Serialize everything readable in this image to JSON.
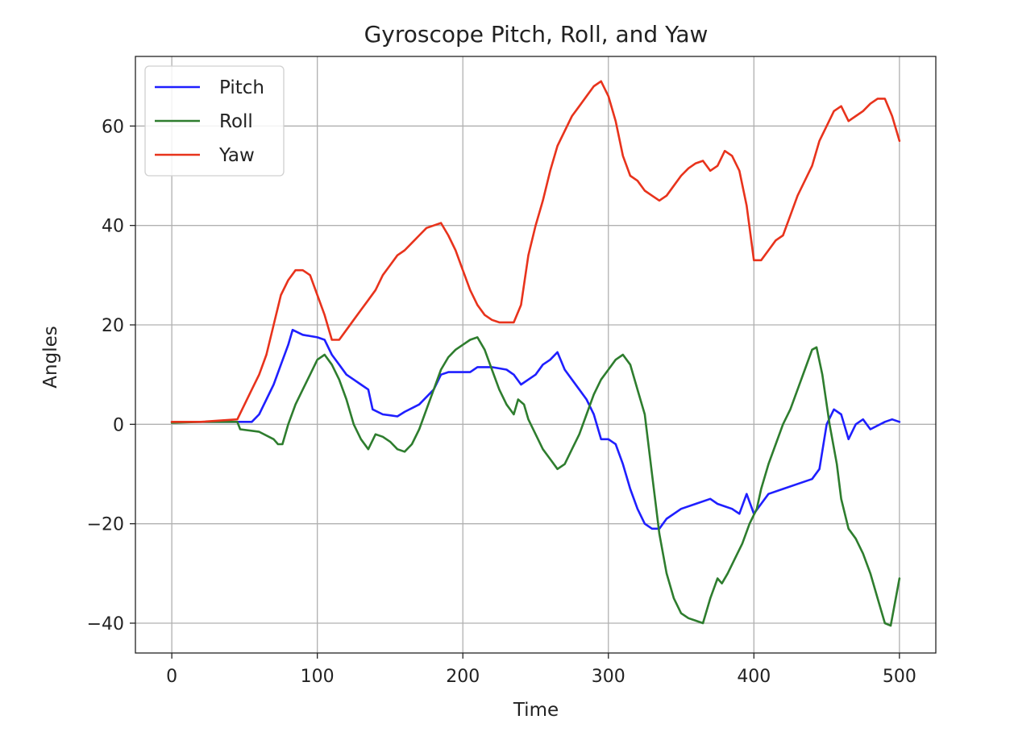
{
  "chart_data": {
    "type": "line",
    "title": "Gyroscope Pitch, Roll, and Yaw",
    "xlabel": "Time",
    "ylabel": "Angles",
    "xlim": [
      -25,
      525
    ],
    "ylim": [
      -46,
      74
    ],
    "xticks": [
      0,
      100,
      200,
      300,
      400,
      500
    ],
    "yticks": [
      -40,
      -20,
      0,
      20,
      40,
      60
    ],
    "xtick_labels": [
      "0",
      "100",
      "200",
      "300",
      "400",
      "500"
    ],
    "ytick_labels": [
      "−40",
      "−20",
      "0",
      "20",
      "40",
      "60"
    ],
    "grid": true,
    "legend_position": "upper-left",
    "series": [
      {
        "name": "Pitch",
        "color": "#1f1fff",
        "points": [
          [
            0,
            0.5
          ],
          [
            20,
            0.5
          ],
          [
            45,
            0.5
          ],
          [
            55,
            0.5
          ],
          [
            60,
            2
          ],
          [
            65,
            5
          ],
          [
            70,
            8
          ],
          [
            75,
            12
          ],
          [
            80,
            16
          ],
          [
            83,
            19
          ],
          [
            90,
            18
          ],
          [
            100,
            17.5
          ],
          [
            105,
            17
          ],
          [
            110,
            14
          ],
          [
            115,
            12
          ],
          [
            120,
            10
          ],
          [
            125,
            9
          ],
          [
            130,
            8
          ],
          [
            135,
            7
          ],
          [
            138,
            3
          ],
          [
            145,
            2
          ],
          [
            150,
            1.8
          ],
          [
            155,
            1.6
          ],
          [
            160,
            2.5
          ],
          [
            170,
            4
          ],
          [
            180,
            7
          ],
          [
            185,
            10
          ],
          [
            190,
            10.5
          ],
          [
            200,
            10.5
          ],
          [
            205,
            10.5
          ],
          [
            210,
            11.5
          ],
          [
            220,
            11.5
          ],
          [
            230,
            11
          ],
          [
            235,
            10
          ],
          [
            240,
            8
          ],
          [
            245,
            9
          ],
          [
            250,
            10
          ],
          [
            255,
            12
          ],
          [
            260,
            13
          ],
          [
            265,
            14.5
          ],
          [
            270,
            11
          ],
          [
            275,
            9
          ],
          [
            280,
            7
          ],
          [
            285,
            5
          ],
          [
            290,
            2
          ],
          [
            295,
            -3
          ],
          [
            300,
            -3
          ],
          [
            305,
            -4
          ],
          [
            310,
            -8
          ],
          [
            315,
            -13
          ],
          [
            320,
            -17
          ],
          [
            325,
            -20
          ],
          [
            330,
            -21
          ],
          [
            335,
            -21
          ],
          [
            340,
            -19
          ],
          [
            350,
            -17
          ],
          [
            360,
            -16
          ],
          [
            370,
            -15
          ],
          [
            375,
            -16
          ],
          [
            380,
            -16.5
          ],
          [
            385,
            -17
          ],
          [
            390,
            -18
          ],
          [
            395,
            -14
          ],
          [
            400,
            -18
          ],
          [
            405,
            -16
          ],
          [
            410,
            -14
          ],
          [
            420,
            -13
          ],
          [
            430,
            -12
          ],
          [
            440,
            -11
          ],
          [
            445,
            -9
          ],
          [
            450,
            0
          ],
          [
            455,
            3
          ],
          [
            460,
            2
          ],
          [
            465,
            -3
          ],
          [
            470,
            0
          ],
          [
            475,
            1
          ],
          [
            480,
            -1
          ],
          [
            490,
            0.5
          ],
          [
            495,
            1
          ],
          [
            500,
            0.5
          ]
        ]
      },
      {
        "name": "Roll",
        "color": "#2e7d2e",
        "points": [
          [
            0,
            0.3
          ],
          [
            20,
            0.5
          ],
          [
            45,
            0.5
          ],
          [
            47,
            -1
          ],
          [
            60,
            -1.5
          ],
          [
            70,
            -3
          ],
          [
            73,
            -4
          ],
          [
            76,
            -4
          ],
          [
            80,
            0
          ],
          [
            85,
            4
          ],
          [
            90,
            7
          ],
          [
            95,
            10
          ],
          [
            100,
            13
          ],
          [
            105,
            14
          ],
          [
            110,
            12
          ],
          [
            115,
            9
          ],
          [
            120,
            5
          ],
          [
            125,
            0
          ],
          [
            130,
            -3
          ],
          [
            135,
            -5
          ],
          [
            140,
            -2
          ],
          [
            145,
            -2.5
          ],
          [
            150,
            -3.5
          ],
          [
            155,
            -5
          ],
          [
            160,
            -5.5
          ],
          [
            165,
            -4
          ],
          [
            170,
            -1
          ],
          [
            175,
            3
          ],
          [
            180,
            7
          ],
          [
            185,
            11
          ],
          [
            190,
            13.5
          ],
          [
            195,
            15
          ],
          [
            200,
            16
          ],
          [
            205,
            17
          ],
          [
            210,
            17.5
          ],
          [
            215,
            15
          ],
          [
            220,
            11
          ],
          [
            225,
            7
          ],
          [
            230,
            4
          ],
          [
            235,
            2
          ],
          [
            238,
            5
          ],
          [
            242,
            4
          ],
          [
            245,
            1
          ],
          [
            250,
            -2
          ],
          [
            255,
            -5
          ],
          [
            260,
            -7
          ],
          [
            265,
            -9
          ],
          [
            270,
            -8
          ],
          [
            275,
            -5
          ],
          [
            280,
            -2
          ],
          [
            285,
            2
          ],
          [
            290,
            6
          ],
          [
            295,
            9
          ],
          [
            300,
            11
          ],
          [
            305,
            13
          ],
          [
            310,
            14
          ],
          [
            315,
            12
          ],
          [
            320,
            7
          ],
          [
            325,
            2
          ],
          [
            330,
            -10
          ],
          [
            335,
            -22
          ],
          [
            340,
            -30
          ],
          [
            345,
            -35
          ],
          [
            350,
            -38
          ],
          [
            355,
            -39
          ],
          [
            360,
            -39.5
          ],
          [
            365,
            -40
          ],
          [
            370,
            -35
          ],
          [
            375,
            -31
          ],
          [
            378,
            -32
          ],
          [
            382,
            -30
          ],
          [
            387,
            -27
          ],
          [
            392,
            -24
          ],
          [
            397,
            -20
          ],
          [
            402,
            -17
          ],
          [
            405,
            -13
          ],
          [
            410,
            -8
          ],
          [
            415,
            -4
          ],
          [
            420,
            0
          ],
          [
            425,
            3
          ],
          [
            430,
            7
          ],
          [
            435,
            11
          ],
          [
            440,
            15
          ],
          [
            443,
            15.5
          ],
          [
            447,
            10
          ],
          [
            452,
            0
          ],
          [
            457,
            -8
          ],
          [
            460,
            -15
          ],
          [
            465,
            -21
          ],
          [
            470,
            -23
          ],
          [
            475,
            -26
          ],
          [
            480,
            -30
          ],
          [
            485,
            -35
          ],
          [
            490,
            -40
          ],
          [
            494,
            -40.5
          ],
          [
            500,
            -31
          ]
        ]
      },
      {
        "name": "Yaw",
        "color": "#e8331c",
        "points": [
          [
            0,
            0.5
          ],
          [
            20,
            0.5
          ],
          [
            45,
            1
          ],
          [
            50,
            4
          ],
          [
            55,
            7
          ],
          [
            60,
            10
          ],
          [
            65,
            14
          ],
          [
            70,
            20
          ],
          [
            75,
            26
          ],
          [
            80,
            29
          ],
          [
            85,
            31
          ],
          [
            90,
            31
          ],
          [
            95,
            30
          ],
          [
            100,
            26
          ],
          [
            105,
            22
          ],
          [
            110,
            17
          ],
          [
            115,
            17
          ],
          [
            120,
            19
          ],
          [
            125,
            21
          ],
          [
            130,
            23
          ],
          [
            135,
            25
          ],
          [
            140,
            27
          ],
          [
            145,
            30
          ],
          [
            150,
            32
          ],
          [
            155,
            34
          ],
          [
            160,
            35
          ],
          [
            165,
            36.5
          ],
          [
            170,
            38
          ],
          [
            175,
            39.5
          ],
          [
            180,
            40
          ],
          [
            185,
            40.5
          ],
          [
            190,
            38
          ],
          [
            195,
            35
          ],
          [
            200,
            31
          ],
          [
            205,
            27
          ],
          [
            210,
            24
          ],
          [
            215,
            22
          ],
          [
            220,
            21
          ],
          [
            225,
            20.5
          ],
          [
            230,
            20.5
          ],
          [
            235,
            20.5
          ],
          [
            240,
            24
          ],
          [
            245,
            34
          ],
          [
            250,
            40
          ],
          [
            255,
            45
          ],
          [
            260,
            51
          ],
          [
            265,
            56
          ],
          [
            270,
            59
          ],
          [
            275,
            62
          ],
          [
            280,
            64
          ],
          [
            285,
            66
          ],
          [
            290,
            68
          ],
          [
            295,
            69
          ],
          [
            300,
            66
          ],
          [
            305,
            61
          ],
          [
            310,
            54
          ],
          [
            315,
            50
          ],
          [
            320,
            49
          ],
          [
            325,
            47
          ],
          [
            330,
            46
          ],
          [
            335,
            45
          ],
          [
            340,
            46
          ],
          [
            345,
            48
          ],
          [
            350,
            50
          ],
          [
            355,
            51.5
          ],
          [
            360,
            52.5
          ],
          [
            365,
            53
          ],
          [
            370,
            51
          ],
          [
            375,
            52
          ],
          [
            380,
            55
          ],
          [
            385,
            54
          ],
          [
            390,
            51
          ],
          [
            395,
            44
          ],
          [
            400,
            33
          ],
          [
            405,
            33
          ],
          [
            410,
            35
          ],
          [
            415,
            37
          ],
          [
            420,
            38
          ],
          [
            425,
            42
          ],
          [
            430,
            46
          ],
          [
            435,
            49
          ],
          [
            440,
            52
          ],
          [
            445,
            57
          ],
          [
            450,
            60
          ],
          [
            455,
            63
          ],
          [
            460,
            64
          ],
          [
            465,
            61
          ],
          [
            470,
            62
          ],
          [
            475,
            63
          ],
          [
            480,
            64.5
          ],
          [
            485,
            65.5
          ],
          [
            490,
            65.5
          ],
          [
            495,
            62
          ],
          [
            500,
            57
          ]
        ]
      }
    ]
  }
}
